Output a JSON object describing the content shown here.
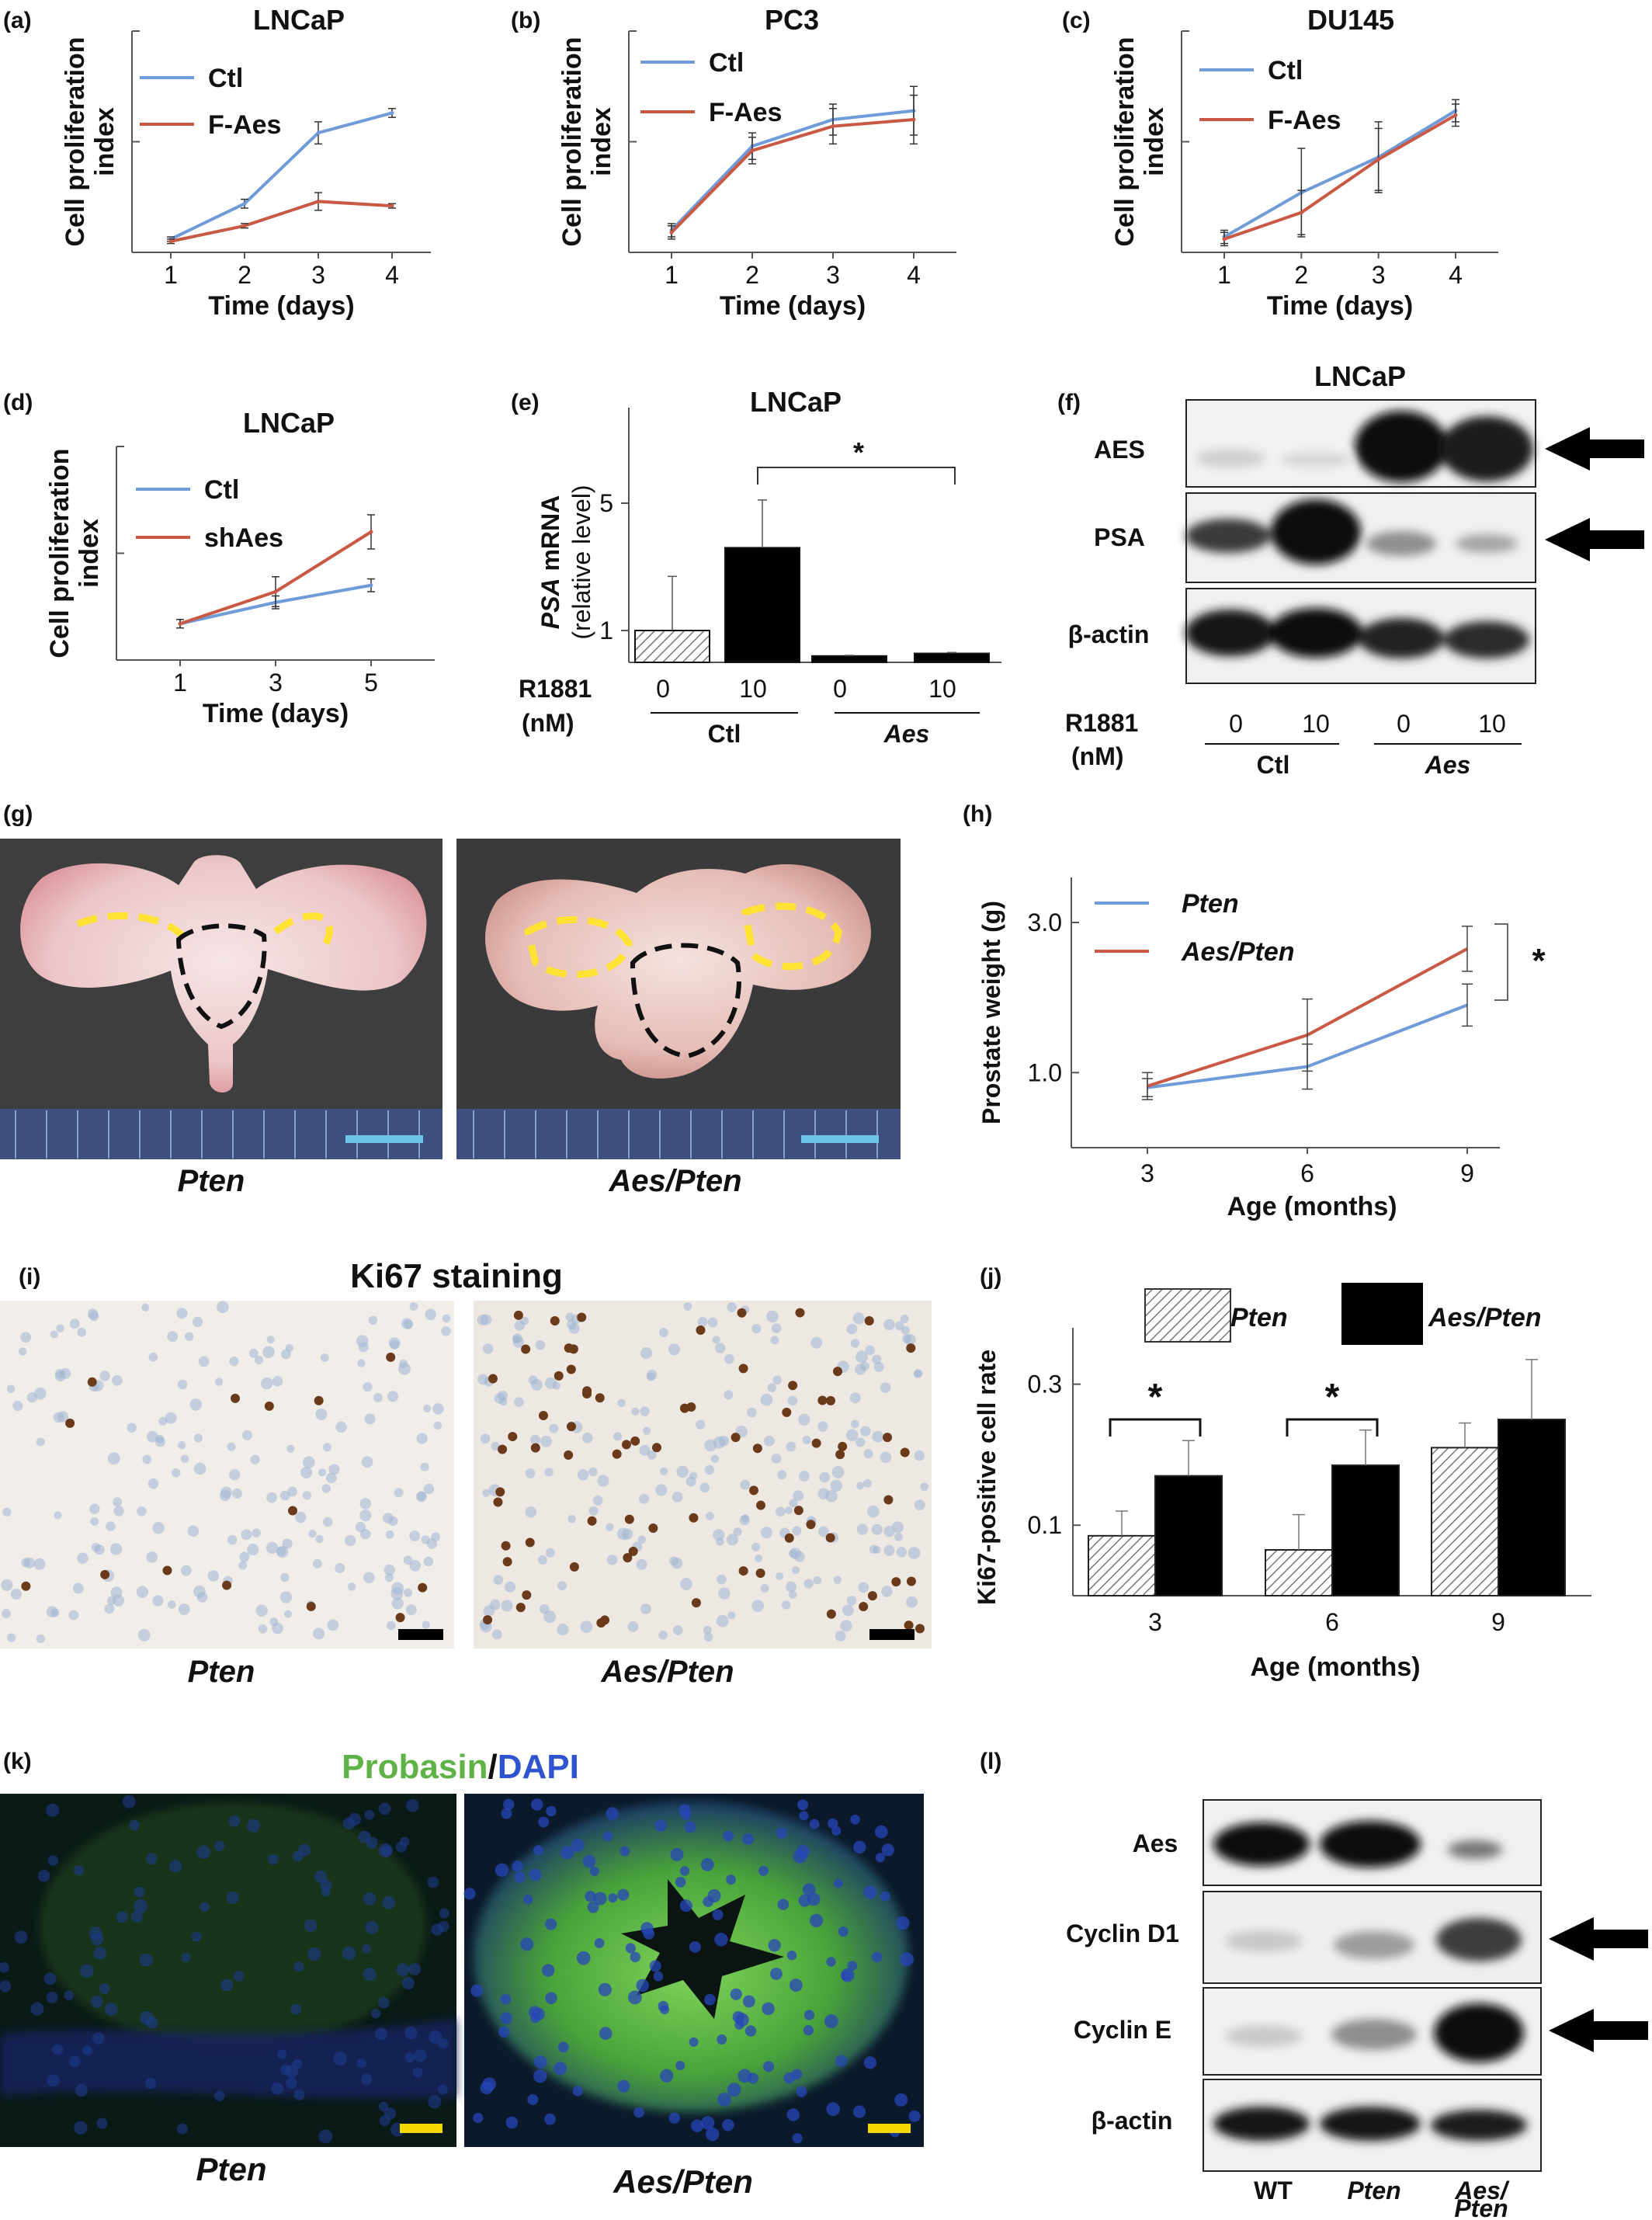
{
  "panels": {
    "a": {
      "letter": "(a)"
    },
    "b": {
      "letter": "(b)"
    },
    "c": {
      "letter": "(c)"
    },
    "d": {
      "letter": "(d)"
    },
    "e": {
      "letter": "(e)"
    },
    "f": {
      "letter": "(f)",
      "title": "LNCaP",
      "rows": [
        "AES",
        "PSA",
        "β-actin"
      ],
      "treat_label1": "R1881",
      "treat_label2": "(nM)",
      "doses": [
        "0",
        "10",
        "0",
        "10"
      ],
      "groups": [
        "Ctl",
        "Aes"
      ]
    },
    "g": {
      "letter": "(g)",
      "captions": [
        "Pten",
        "Aes/Pten"
      ]
    },
    "h": {
      "letter": "(h)"
    },
    "i": {
      "letter": "(i)",
      "title": "Ki67 staining",
      "captions": [
        "Pten",
        "Aes/Pten"
      ]
    },
    "j": {
      "letter": "(j)"
    },
    "k": {
      "letter": "(k)",
      "title_a": "Probasin",
      "title_sep": "/",
      "title_b": "DAPI",
      "captions": [
        "Pten",
        "Aes/Pten"
      ]
    },
    "l": {
      "letter": "(l)",
      "rows": [
        "Aes",
        "Cyclin D1",
        "Cyclin E",
        "β-actin"
      ],
      "lanes": [
        "WT",
        "Pten",
        "Aes/",
        "Pten"
      ]
    }
  },
  "colors": {
    "ctl": "#6f9bd8",
    "treat": "#c95945",
    "black": "#000000",
    "green": "#5fb346",
    "blue": "#2f54d0"
  },
  "chart_data": [
    {
      "panel": "a",
      "type": "line",
      "title": "LNCaP",
      "xlabel": "Time (days)",
      "ylabel": "Cell proliferation index",
      "x": [
        1,
        2,
        3,
        4
      ],
      "ylim": [
        0,
        1
      ],
      "series": [
        {
          "name": "Ctl",
          "values": [
            0.06,
            0.22,
            0.54,
            0.63
          ],
          "err": [
            0.01,
            0.02,
            0.05,
            0.02
          ]
        },
        {
          "name": "F-Aes",
          "values": [
            0.05,
            0.12,
            0.23,
            0.21
          ],
          "err": [
            0.01,
            0.01,
            0.04,
            0.01
          ]
        }
      ]
    },
    {
      "panel": "b",
      "type": "line",
      "title": "PC3",
      "xlabel": "Time (days)",
      "ylabel": "Cell proliferation index",
      "x": [
        1,
        2,
        3,
        4
      ],
      "ylim": [
        0,
        1
      ],
      "series": [
        {
          "name": "Ctl",
          "values": [
            0.1,
            0.48,
            0.6,
            0.64
          ],
          "err": [
            0.03,
            0.06,
            0.07,
            0.11
          ]
        },
        {
          "name": "F-Aes",
          "values": [
            0.09,
            0.46,
            0.57,
            0.6
          ],
          "err": [
            0.03,
            0.06,
            0.08,
            0.11
          ]
        }
      ]
    },
    {
      "panel": "c",
      "type": "line",
      "title": "DU145",
      "xlabel": "Time (days)",
      "ylabel": "Cell proliferation index",
      "x": [
        1,
        2,
        3,
        4
      ],
      "ylim": [
        0,
        1
      ],
      "series": [
        {
          "name": "Ctl",
          "values": [
            0.07,
            0.27,
            0.43,
            0.64
          ],
          "err": [
            0.03,
            0.2,
            0.16,
            0.05
          ]
        },
        {
          "name": "F-Aes",
          "values": [
            0.06,
            0.18,
            0.42,
            0.62
          ],
          "err": [
            0.03,
            0.1,
            0.14,
            0.05
          ]
        }
      ]
    },
    {
      "panel": "d",
      "type": "line",
      "title": "LNCaP",
      "xlabel": "Time (days)",
      "ylabel": "Cell proliferation index",
      "x": [
        1,
        3,
        5
      ],
      "ylim": [
        0,
        1
      ],
      "series": [
        {
          "name": "Ctl",
          "values": [
            0.17,
            0.27,
            0.35
          ],
          "err": [
            0.02,
            0.03,
            0.03
          ]
        },
        {
          "name": "shAes",
          "values": [
            0.17,
            0.32,
            0.6
          ],
          "err": [
            0.02,
            0.07,
            0.08
          ]
        }
      ]
    },
    {
      "panel": "e",
      "type": "bar",
      "title": "LNCaP",
      "ylabel_italic": "PSA",
      "ylabel": " mRNA",
      "ylabel2": "(relative level)",
      "yticks": [
        1,
        5
      ],
      "ylim": [
        0,
        8
      ],
      "categories": [
        "Ctl 0",
        "Ctl 10",
        "Aes 0",
        "Aes 10"
      ],
      "values": [
        1.0,
        3.6,
        0.2,
        0.28
      ],
      "err": [
        1.7,
        1.5,
        0.02,
        0.03
      ],
      "annotation": "*"
    },
    {
      "panel": "h",
      "type": "line",
      "xlabel": "Age (months)",
      "ylabel": "Prostate weight (g)",
      "x": [
        3,
        6,
        9
      ],
      "yticks": [
        1.0,
        3.0
      ],
      "ylim": [
        0,
        3.6
      ],
      "series": [
        {
          "name": "Pten",
          "values": [
            0.8,
            1.08,
            1.9
          ],
          "err": [
            0.12,
            0.3,
            0.28
          ]
        },
        {
          "name": "Aes/Pten",
          "values": [
            0.82,
            1.5,
            2.65
          ],
          "err": [
            0.18,
            0.48,
            0.3
          ]
        }
      ],
      "annotation": "*"
    },
    {
      "panel": "j",
      "type": "bar",
      "xlabel": "Age (months)",
      "ylabel": "Ki67-positive cell rate",
      "categories": [
        "3",
        "6",
        "9"
      ],
      "yticks": [
        0.1,
        0.3
      ],
      "ylim": [
        0,
        0.38
      ],
      "series": [
        {
          "name": "Pten",
          "values": [
            0.085,
            0.065,
            0.21
          ],
          "err": [
            0.035,
            0.05,
            0.035
          ]
        },
        {
          "name": "Aes/Pten",
          "values": [
            0.17,
            0.185,
            0.25
          ],
          "err": [
            0.05,
            0.05,
            0.085
          ]
        }
      ],
      "annotation": "*"
    }
  ]
}
